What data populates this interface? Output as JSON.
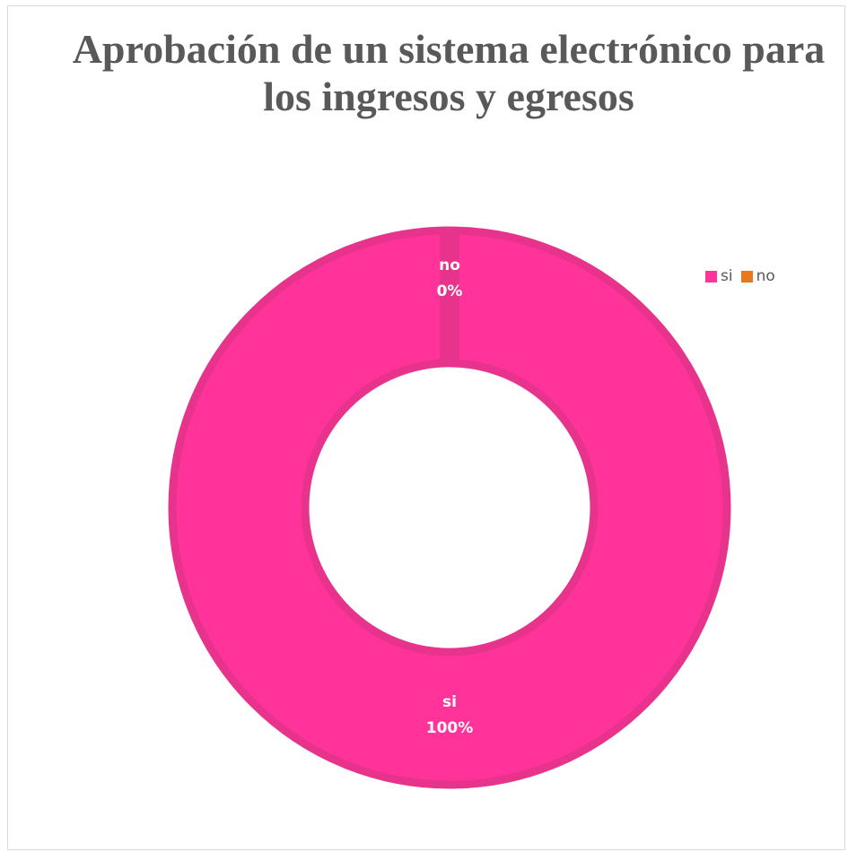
{
  "chart_data": {
    "type": "pie",
    "variant": "doughnut",
    "title": "Aprobación de un sistema electrónico para los ingresos y egresos",
    "categories": [
      "si",
      "no"
    ],
    "values": [
      100,
      0
    ],
    "data_labels": [
      {
        "category": "si",
        "percent": "100%"
      },
      {
        "category": "no",
        "percent": "0%"
      }
    ],
    "colors": {
      "si": "#ff3399",
      "no": "#e87722",
      "ring_outline": "#e8338c"
    },
    "legend": {
      "position": "top-right",
      "entries": [
        "si",
        "no"
      ]
    }
  }
}
